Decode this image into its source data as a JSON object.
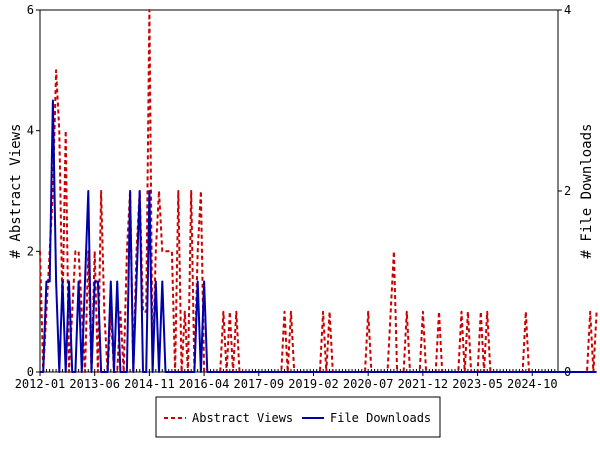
{
  "chart_data": {
    "type": "line",
    "ylabel_left": "# Abstract Views",
    "ylabel_right": "# File Downloads",
    "ylim_left": [
      0,
      6
    ],
    "ylim_right": [
      0,
      4
    ],
    "yticks_left": [
      "0",
      "2",
      "4",
      "6"
    ],
    "yticks_right": [
      "0",
      "2",
      "4"
    ],
    "x_tick_labels": [
      "2012-01",
      "2013-06",
      "2014-11",
      "2016-04",
      "2017-09",
      "2019-02",
      "2020-07",
      "2021-12",
      "2023-05",
      "2024-10"
    ],
    "x_start": "2012-01",
    "x_end": "2025-06",
    "grid": false,
    "legend_position": "bottom",
    "series": [
      {
        "name": "Abstract Views",
        "axis": "left",
        "color": "#cc0000",
        "style": "dashed",
        "values": [
          2,
          0,
          1,
          2,
          3,
          5,
          4,
          1,
          4,
          0,
          1,
          2,
          2,
          1,
          0,
          2,
          0,
          2,
          0,
          3,
          1,
          0,
          1,
          0,
          0,
          1,
          0,
          2,
          3,
          0,
          2,
          3,
          1,
          1,
          6,
          0,
          2,
          3,
          2,
          2,
          2,
          2,
          0,
          3,
          0,
          1,
          0,
          3,
          0,
          2,
          3,
          0,
          0,
          0,
          0,
          0,
          0,
          1,
          0,
          1,
          0,
          1,
          0,
          0,
          0,
          0,
          0,
          0,
          0,
          0,
          0,
          0,
          0,
          0,
          0,
          0,
          1,
          0,
          1,
          0,
          0,
          0,
          0,
          0,
          0,
          0,
          0,
          0,
          1,
          0,
          1,
          0,
          0,
          0,
          0,
          0,
          0,
          0,
          0,
          0,
          0,
          0,
          1,
          0,
          0,
          0,
          0,
          0,
          0,
          1,
          2,
          0,
          0,
          0,
          1,
          0,
          0,
          0,
          0,
          1,
          0,
          0,
          0,
          0,
          1,
          0,
          0,
          0,
          0,
          0,
          0,
          1,
          0,
          1,
          0,
          0,
          0,
          1,
          0,
          1,
          0,
          0,
          0,
          0,
          0,
          0,
          0,
          0,
          0,
          0,
          0,
          1,
          0,
          0,
          0,
          0,
          0,
          0,
          0,
          0,
          0,
          0,
          0,
          0,
          0,
          0,
          0,
          0,
          0,
          0,
          0,
          1,
          0,
          1
        ]
      },
      {
        "name": "File Downloads",
        "axis": "right",
        "color": "#0000aa",
        "style": "solid",
        "values": [
          0,
          0,
          1,
          1,
          3,
          1,
          0,
          1,
          0,
          1,
          0,
          0,
          1,
          0,
          1,
          2,
          0,
          1,
          1,
          0,
          0,
          0,
          1,
          0,
          1,
          0,
          0,
          0,
          2,
          0,
          1,
          2,
          0,
          0,
          2,
          0,
          1,
          0,
          1,
          0,
          0,
          0,
          0,
          0,
          0,
          0,
          0,
          0,
          0,
          1,
          0,
          1,
          0,
          0,
          0,
          0,
          0,
          0,
          0,
          0,
          0,
          0,
          0,
          0,
          0,
          0,
          0,
          0,
          0,
          0,
          0,
          0,
          0,
          0,
          0,
          0,
          0,
          0,
          0,
          0,
          0,
          0,
          0,
          0,
          0,
          0,
          0,
          0,
          0,
          0,
          0,
          0,
          0,
          0,
          0,
          0,
          0,
          0,
          0,
          0,
          0,
          0,
          0,
          0,
          0,
          0,
          0,
          0,
          0,
          0,
          0,
          0,
          0,
          0,
          0,
          0,
          0,
          0,
          0,
          0,
          0,
          0,
          0,
          0,
          0,
          0,
          0,
          0,
          0,
          0,
          0,
          0,
          0,
          0,
          0,
          0,
          0,
          0,
          0,
          0,
          0,
          0,
          0,
          0,
          0,
          0,
          0,
          0,
          0,
          0,
          0,
          0,
          0,
          0,
          0,
          0,
          0,
          0,
          0,
          0,
          0,
          0,
          0,
          0,
          0,
          0,
          0,
          0,
          0,
          0,
          0,
          0,
          0,
          0
        ]
      }
    ]
  }
}
